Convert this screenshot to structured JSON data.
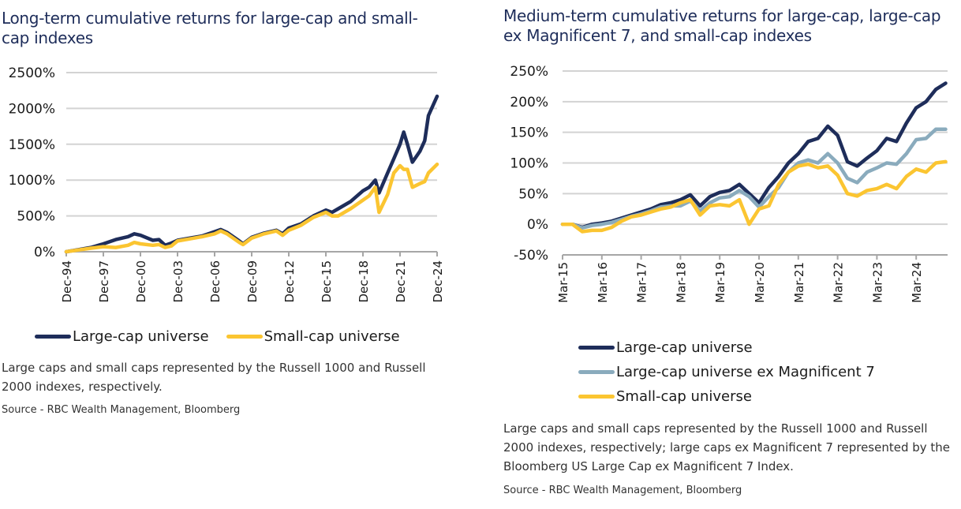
{
  "charts": {
    "left": {
      "title": "Long-term cumulative returns for large-cap and small-cap indexes",
      "note": "Large caps and small caps represented by the Russell 1000 and Russell 2000 indexes, respectively.",
      "source": "Source - RBC Wealth Management, Bloomberg"
    },
    "right": {
      "title": "Medium-term cumulative returns for large-cap, large-cap ex Magnificent 7, and small-cap indexes",
      "note": "Large caps and small caps represented by the Russell 1000 and Russell 2000 indexes, respectively; large caps ex Magnificent 7 represented by the Bloomberg US Large Cap ex Magnificent 7 Index.",
      "source": "Source - RBC Wealth Management, Bloomberg"
    }
  },
  "colors": {
    "large_cap": "#1e2d5a",
    "large_cap_ex_mag7": "#8aabbd",
    "small_cap": "#fbc531",
    "grid": "#d3d3d3",
    "axis": "#a6a6a6",
    "title": "#1e2d5a"
  },
  "chart_data": [
    {
      "type": "line",
      "title": "Long-term cumulative returns for large-cap and small-cap indexes",
      "xlabel": "",
      "ylabel": "",
      "x_tick_labels": [
        "Dec-94",
        "Dec-97",
        "Dec-00",
        "Dec-03",
        "Dec-06",
        "Dec-09",
        "Dec-12",
        "Dec-15",
        "Dec-18",
        "Dec-21",
        "Dec-24"
      ],
      "y_tick_labels": [
        "0%",
        "500%",
        "1000%",
        "1500%",
        "2000%",
        "2500%"
      ],
      "y_ticks": [
        0,
        500,
        1000,
        1500,
        2000,
        2500
      ],
      "ylim": [
        0,
        2500
      ],
      "xlim_years_from_start": [
        0,
        30
      ],
      "x_unit": "years since Dec-94",
      "grid": true,
      "legend_position": "bottom",
      "series": [
        {
          "name": "Large-cap universe",
          "color_key": "large_cap",
          "x": [
            0,
            1,
            2,
            3,
            4,
            5,
            5.5,
            6,
            7,
            7.5,
            8,
            8.5,
            9,
            10,
            11,
            12,
            12.5,
            13,
            14,
            14.3,
            15,
            16,
            17,
            17.5,
            18,
            19,
            20,
            21,
            21.5,
            22,
            23,
            24,
            24.5,
            25,
            25.3,
            26,
            26.5,
            27,
            27.3,
            27.6,
            28,
            28.6,
            29,
            29.3,
            30
          ],
          "values": [
            0,
            30,
            60,
            110,
            170,
            210,
            250,
            230,
            160,
            170,
            90,
            120,
            160,
            190,
            220,
            280,
            310,
            270,
            150,
            110,
            200,
            260,
            300,
            250,
            330,
            390,
            500,
            580,
            550,
            600,
            700,
            850,
            900,
            1000,
            820,
            1100,
            1300,
            1500,
            1670,
            1500,
            1250,
            1400,
            1550,
            1900,
            2170
          ]
        },
        {
          "name": "Small-cap universe",
          "color_key": "small_cap",
          "x": [
            0,
            1,
            2,
            3,
            4,
            5,
            5.5,
            6,
            7,
            7.5,
            8,
            8.5,
            9,
            10,
            11,
            12,
            12.5,
            13,
            14,
            14.3,
            15,
            16,
            17,
            17.5,
            18,
            19,
            20,
            21,
            21.5,
            22,
            23,
            24,
            24.5,
            25,
            25.3,
            26,
            26.5,
            27,
            27.3,
            27.6,
            28,
            28.6,
            29,
            29.3,
            30
          ],
          "values": [
            0,
            25,
            50,
            70,
            60,
            90,
            130,
            110,
            90,
            100,
            60,
            80,
            150,
            180,
            210,
            250,
            290,
            250,
            130,
            100,
            190,
            250,
            290,
            230,
            300,
            370,
            480,
            550,
            500,
            500,
            600,
            720,
            780,
            900,
            550,
            800,
            1100,
            1200,
            1150,
            1150,
            900,
            950,
            980,
            1100,
            1220
          ]
        }
      ]
    },
    {
      "type": "line",
      "title": "Medium-term cumulative returns for large-cap, large-cap ex Magnificent 7, and small-cap indexes",
      "xlabel": "",
      "ylabel": "",
      "x_tick_labels": [
        "Mar-15",
        "Mar-16",
        "Mar-17",
        "Mar-18",
        "Mar-19",
        "Mar-20",
        "Mar-21",
        "Mar-22",
        "Mar-23",
        "Mar-24"
      ],
      "y_tick_labels": [
        "-50%",
        "0%",
        "50%",
        "100%",
        "150%",
        "200%",
        "250%"
      ],
      "y_ticks": [
        -50,
        0,
        50,
        100,
        150,
        200,
        250
      ],
      "ylim": [
        -50,
        250
      ],
      "xlim_years_from_start": [
        0,
        9.8
      ],
      "x_unit": "years since Mar-15",
      "grid": true,
      "legend_position": "bottom",
      "series": [
        {
          "name": "Large-cap universe",
          "color_key": "large_cap",
          "x": [
            0,
            0.25,
            0.5,
            0.75,
            1,
            1.25,
            1.5,
            1.75,
            2,
            2.25,
            2.5,
            2.75,
            3,
            3.25,
            3.5,
            3.75,
            4,
            4.25,
            4.5,
            4.75,
            5,
            5.25,
            5.5,
            5.75,
            6,
            6.25,
            6.5,
            6.75,
            7,
            7.25,
            7.5,
            7.75,
            8,
            8.25,
            8.5,
            8.75,
            9,
            9.25,
            9.5,
            9.75
          ],
          "values": [
            0,
            0,
            -5,
            0,
            2,
            5,
            10,
            15,
            20,
            25,
            32,
            35,
            40,
            48,
            30,
            45,
            52,
            55,
            65,
            50,
            35,
            60,
            78,
            100,
            115,
            135,
            140,
            160,
            145,
            102,
            95,
            108,
            120,
            140,
            135,
            165,
            190,
            200,
            220,
            230
          ]
        },
        {
          "name": "Large-cap universe ex Magnificent 7",
          "color_key": "large_cap_ex_mag7",
          "x": [
            0,
            0.25,
            0.5,
            0.75,
            1,
            1.25,
            1.5,
            1.75,
            2,
            2.25,
            2.5,
            2.75,
            3,
            3.25,
            3.5,
            3.75,
            4,
            4.25,
            4.5,
            4.75,
            5,
            5.25,
            5.5,
            5.75,
            6,
            6.25,
            6.5,
            6.75,
            7,
            7.25,
            7.5,
            7.75,
            8,
            8.25,
            8.5,
            8.75,
            9,
            9.25,
            9.5,
            9.75
          ],
          "values": [
            0,
            0,
            -6,
            -2,
            0,
            3,
            8,
            13,
            17,
            22,
            28,
            30,
            30,
            38,
            22,
            35,
            43,
            45,
            55,
            45,
            28,
            45,
            60,
            85,
            100,
            105,
            100,
            115,
            100,
            75,
            68,
            85,
            92,
            100,
            98,
            115,
            138,
            140,
            155,
            155
          ]
        },
        {
          "name": "Small-cap universe",
          "color_key": "small_cap",
          "x": [
            0,
            0.25,
            0.5,
            0.75,
            1,
            1.25,
            1.5,
            1.75,
            2,
            2.25,
            2.5,
            2.75,
            3,
            3.25,
            3.5,
            3.75,
            4,
            4.25,
            4.5,
            4.75,
            5,
            5.25,
            5.5,
            5.75,
            6,
            6.25,
            6.5,
            6.75,
            7,
            7.25,
            7.5,
            7.75,
            8,
            8.25,
            8.5,
            8.75,
            9,
            9.25,
            9.5,
            9.75
          ],
          "values": [
            0,
            0,
            -12,
            -10,
            -10,
            -5,
            5,
            12,
            15,
            20,
            25,
            28,
            35,
            40,
            15,
            30,
            32,
            30,
            40,
            0,
            25,
            30,
            65,
            85,
            95,
            98,
            92,
            95,
            80,
            50,
            46,
            55,
            58,
            65,
            58,
            78,
            90,
            85,
            100,
            102
          ]
        }
      ]
    }
  ]
}
